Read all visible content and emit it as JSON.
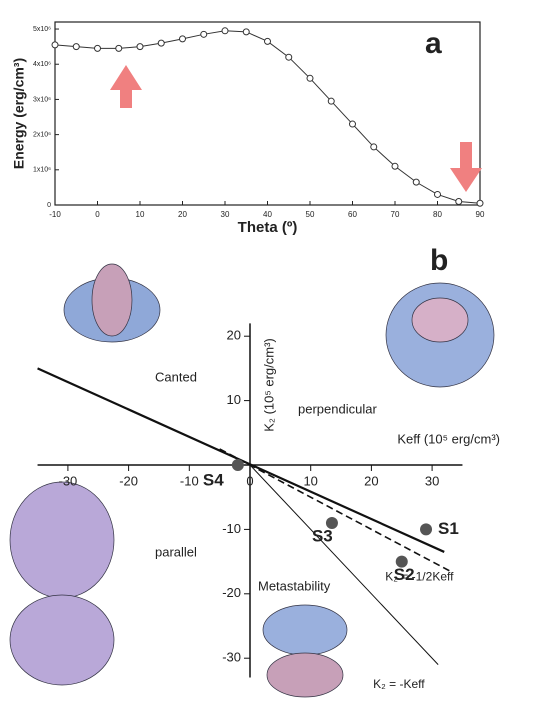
{
  "chart_data": [
    {
      "type": "line",
      "title": "a",
      "x_label": "Theta (º)",
      "y_label": "Energy (erg/cm³)",
      "x": [
        -10,
        -5,
        0,
        5,
        10,
        15,
        20,
        25,
        30,
        35,
        40,
        45,
        50,
        55,
        60,
        65,
        70,
        75,
        80,
        85,
        90
      ],
      "series": [
        {
          "color": "#333333",
          "marker": "circle",
          "values": [
            4550000,
            4500000,
            4450000,
            4450000,
            4500000,
            4600000,
            4720000,
            4850000,
            4950000,
            4920000,
            4650000,
            4200000,
            3600000,
            2950000,
            2300000,
            1650000,
            1100000,
            650000,
            300000,
            100000,
            50000
          ]
        }
      ],
      "xlim": [
        -10,
        90
      ],
      "xticks": [
        -10,
        0,
        10,
        20,
        30,
        40,
        50,
        60,
        70,
        80,
        90
      ],
      "ylim": [
        0,
        5200000
      ],
      "yticks": [
        0,
        {
          "value": 1000000,
          "label": "1x10⁶"
        },
        {
          "value": 2000000,
          "label": "2x10⁶"
        },
        {
          "value": 3000000,
          "label": "3x10⁶"
        },
        {
          "value": 4000000,
          "label": "4x10⁶"
        },
        {
          "value": 5000000,
          "label": "5x10⁶"
        }
      ],
      "arrow_color": "#f08080"
    },
    {
      "type": "scatter",
      "title": "b",
      "x_label": "Keff (10⁵ erg/cm³)",
      "y_label": "K₂ (10⁵ erg/cm³)",
      "xlim": [
        -35,
        35
      ],
      "xticks": [
        -30,
        -20,
        -10,
        0,
        10,
        20,
        30
      ],
      "ylim": [
        -33,
        22
      ],
      "yticks": [
        -30,
        -20,
        -10,
        10,
        20
      ],
      "series": [
        {
          "x": [
            -35,
            32
          ],
          "values": [
            15,
            -13.5
          ],
          "style": "thick",
          "color": "#111111"
        },
        {
          "name": "K₂ = -1/2Keff",
          "x": [
            -5,
            33
          ],
          "values": [
            2.5,
            -16.5
          ],
          "style": "dashed",
          "color": "#111111"
        },
        {
          "name": "K₂ = -Keff",
          "x": [
            0,
            31
          ],
          "values": [
            0,
            -31
          ],
          "style": "thin",
          "color": "#111111"
        }
      ],
      "points": {
        "labels": [
          "S1",
          "S2",
          "S3",
          "S4"
        ],
        "x": [
          29,
          25,
          13.5,
          -2
        ],
        "values": [
          -10,
          -15,
          -9,
          0
        ],
        "color": "#555555"
      },
      "regions": [
        "Canted",
        "perpendicular",
        "parallel",
        "Metastability"
      ]
    }
  ]
}
